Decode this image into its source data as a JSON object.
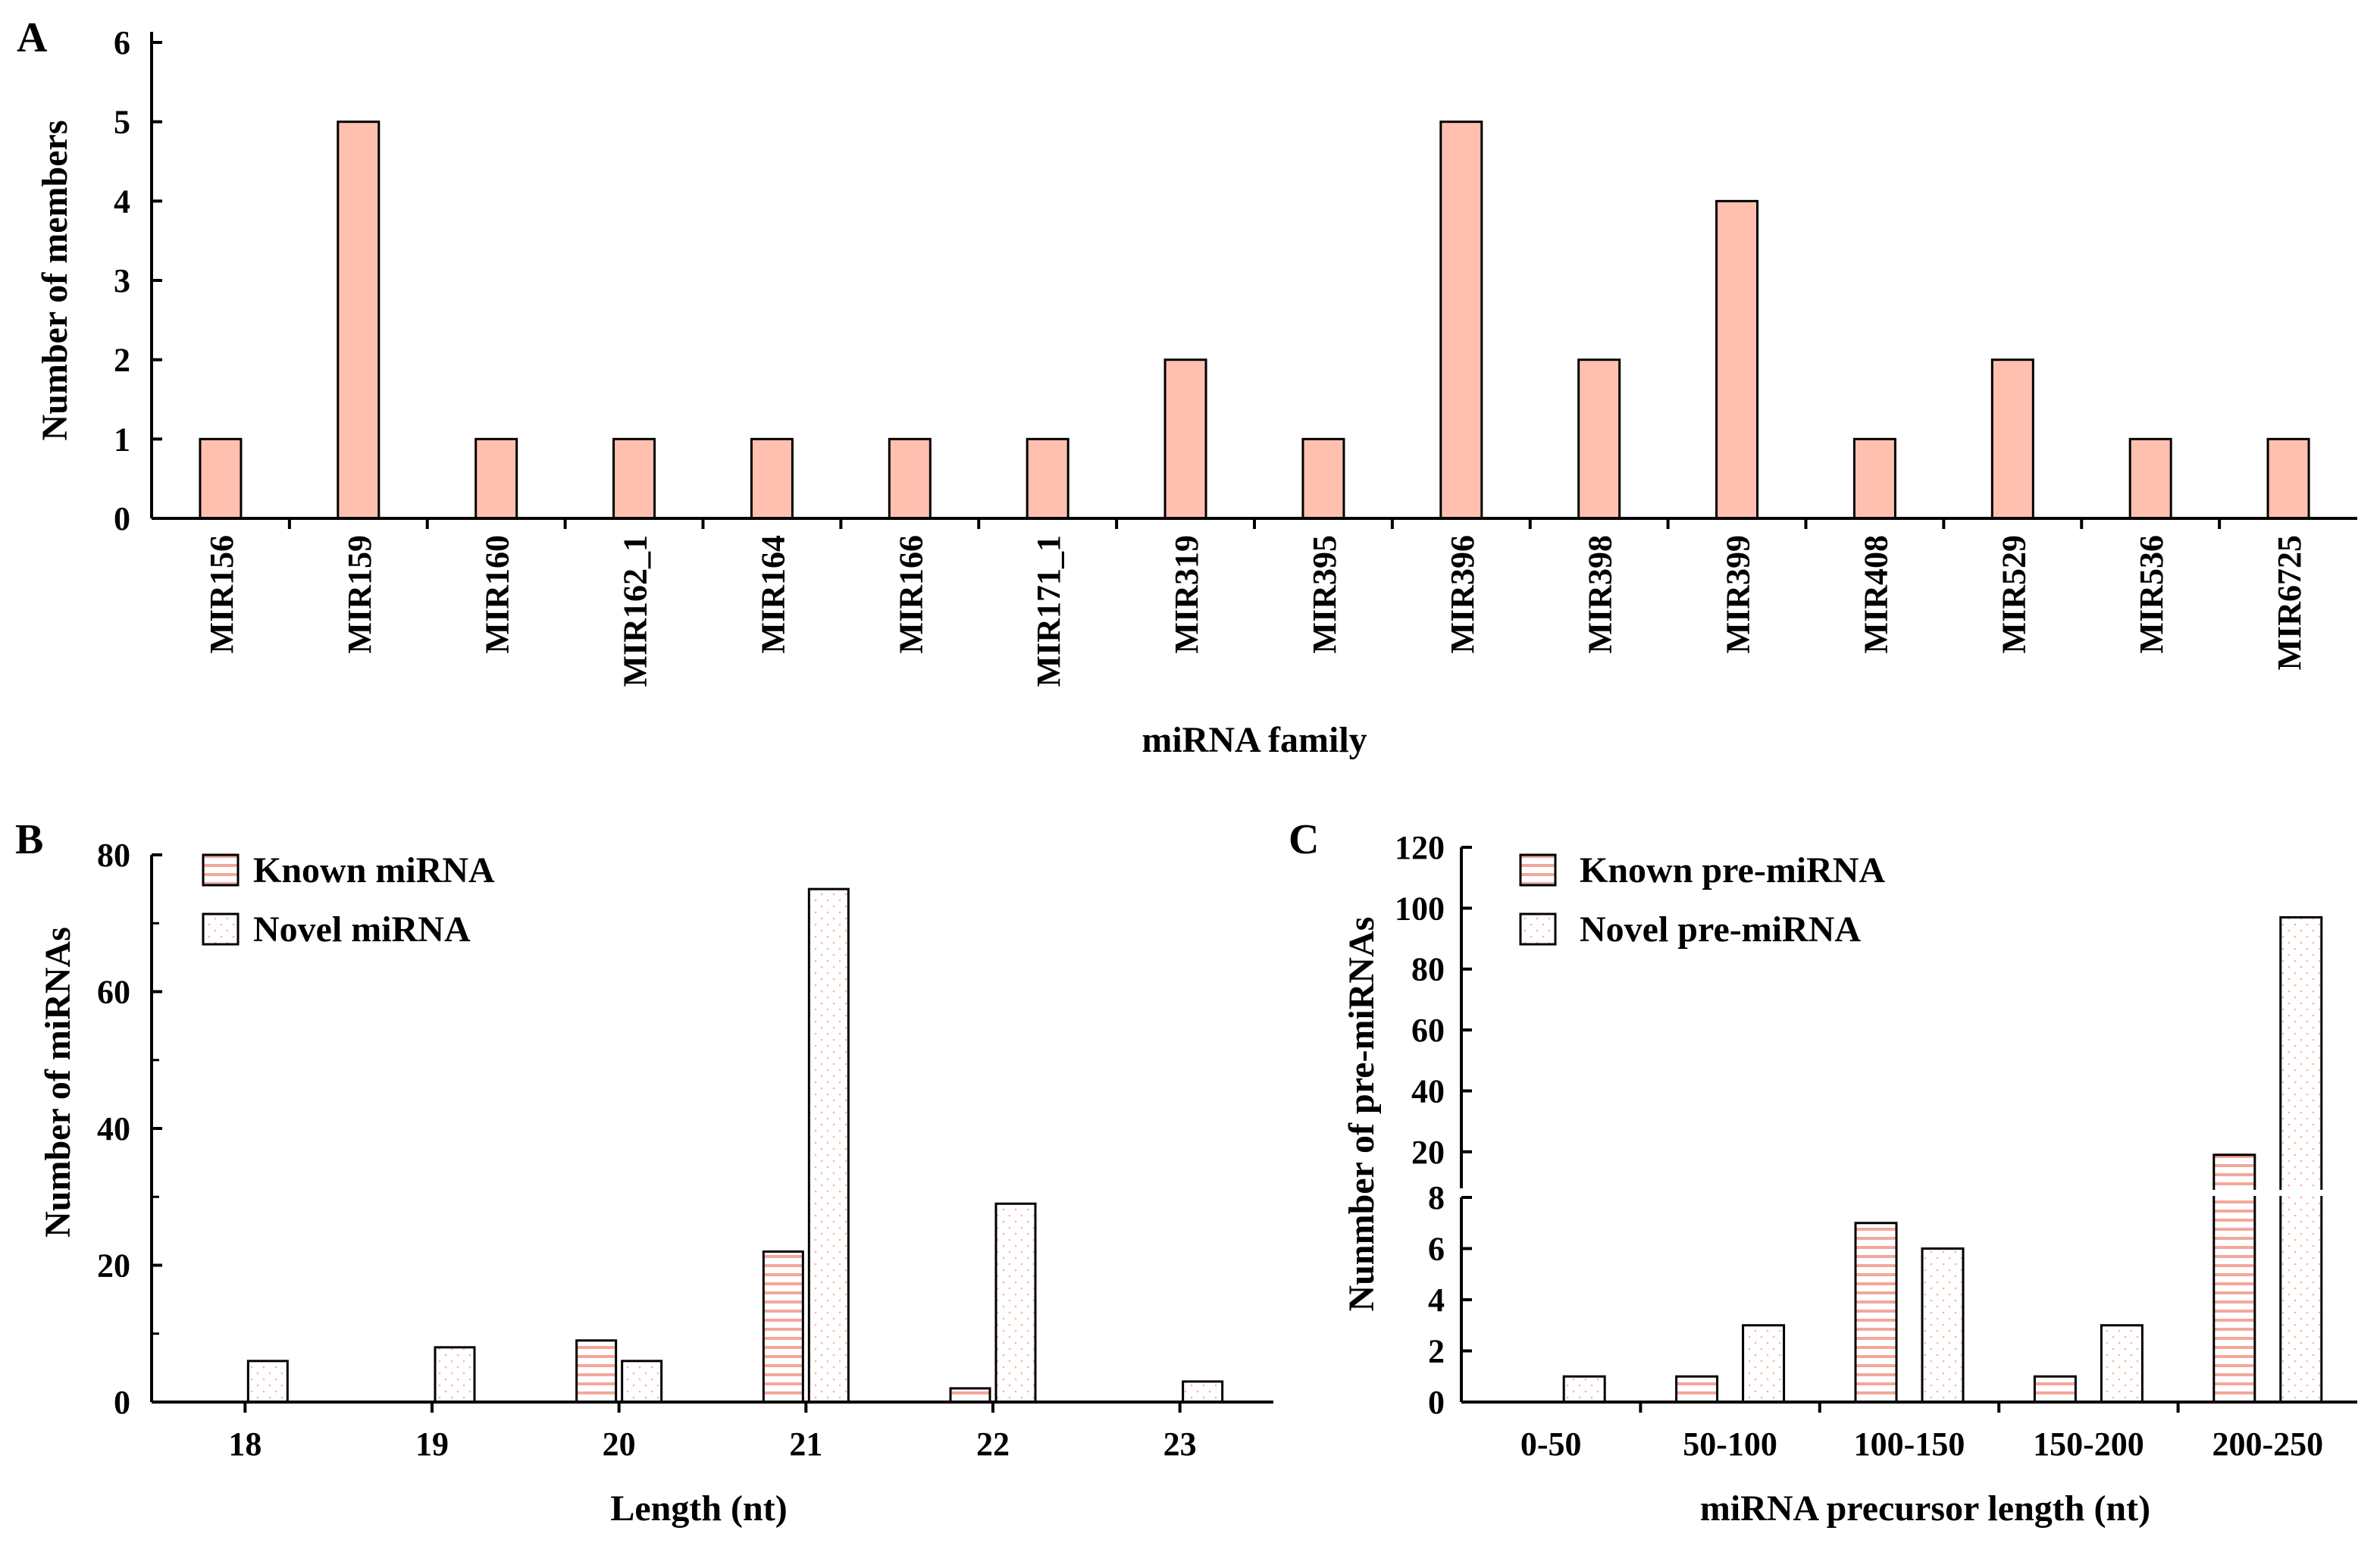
{
  "colors": {
    "bar_fill": "#FFC0B0",
    "known_stripe": "#F4A79A",
    "novel_dot": "#F7B3A8",
    "axis": "#000000",
    "background": "#FFFFFF"
  },
  "chart_data": [
    {
      "panel": "A",
      "type": "bar",
      "title": "",
      "xlabel": "miRNA family",
      "ylabel": "Number of members",
      "ylim": [
        0,
        6
      ],
      "yticks": [
        "0",
        "1",
        "2",
        "3",
        "4",
        "5",
        "6"
      ],
      "categories": [
        "MIR156",
        "MIR159",
        "MIR160",
        "MIR162_1",
        "MIR164",
        "MIR166",
        "MIR171_1",
        "MIR319",
        "MIR395",
        "MIR396",
        "MIR398",
        "MIR399",
        "MIR408",
        "MIR529",
        "MIR536",
        "MIR6725"
      ],
      "values": [
        1,
        5,
        1,
        1,
        1,
        1,
        1,
        2,
        1,
        5,
        2,
        4,
        1,
        2,
        1,
        1
      ],
      "grid": false
    },
    {
      "panel": "B",
      "type": "bar",
      "title": "",
      "xlabel": "Length (nt)",
      "ylabel": "Number of  miRNAs",
      "ylim": [
        0,
        80
      ],
      "yticks": [
        "0",
        "20",
        "40",
        "60",
        "80"
      ],
      "categories": [
        "18",
        "19",
        "20",
        "21",
        "22",
        "23"
      ],
      "series": [
        {
          "name": "Known miRNA",
          "values": [
            0,
            0,
            9,
            22,
            2,
            0
          ]
        },
        {
          "name": "Novel miRNA",
          "values": [
            6,
            8,
            6,
            75,
            29,
            3
          ]
        }
      ],
      "legend": "top-left",
      "grid": false
    },
    {
      "panel": "C",
      "type": "bar",
      "title": "",
      "xlabel": "miRNA precursor length (nt)",
      "ylabel": "Nunmber of pre-miRNAs",
      "axis_break": {
        "lower": [
          0,
          8
        ],
        "upper": [
          8,
          120
        ]
      },
      "yticks_lower": [
        "0",
        "2",
        "4",
        "6",
        "8"
      ],
      "yticks_upper": [
        "20",
        "40",
        "60",
        "80",
        "100",
        "120"
      ],
      "categories": [
        "0-50",
        "50-100",
        "100-150",
        "150-200",
        "200-250"
      ],
      "series": [
        {
          "name": "Known pre-miRNA",
          "values": [
            0,
            1,
            7,
            1,
            19
          ]
        },
        {
          "name": "Novel pre-miRNA",
          "values": [
            1,
            3,
            6,
            3,
            97
          ]
        }
      ],
      "legend": "top-left",
      "grid": false
    }
  ]
}
